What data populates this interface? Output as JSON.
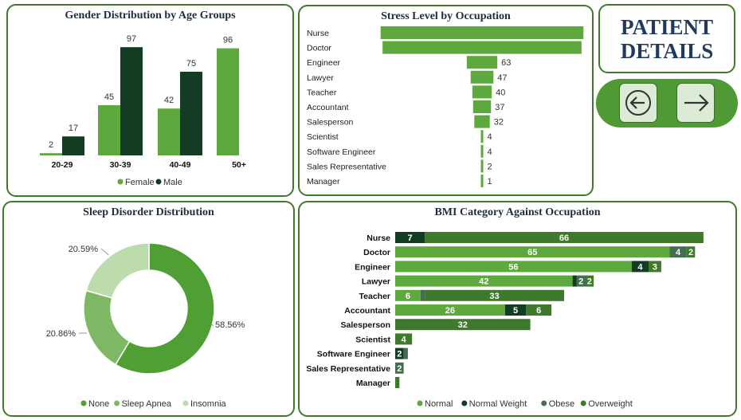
{
  "patient": {
    "line1": "PATIENT",
    "line2": "DETAILS"
  },
  "nav": {
    "prev_icon": "arrow-left-circle-icon",
    "next_icon": "arrow-right-icon"
  },
  "colors": {
    "female": "#5ea93d",
    "male": "#123d23",
    "none": "#4f9f35",
    "sleep_apnea": "#7fb865",
    "insomnia": "#bcdcad",
    "normal": "#5ea93d",
    "normal_weight": "#123d23",
    "obese": "#456e50",
    "overweight": "#3f7a2c"
  },
  "chart_data": [
    {
      "type": "bar",
      "title": "Gender Distribution by Age Groups",
      "categories": [
        "20-29",
        "30-39",
        "40-49",
        "50+"
      ],
      "series": [
        {
          "name": "Female",
          "values": [
            2,
            45,
            42,
            96
          ]
        },
        {
          "name": "Male",
          "values": [
            17,
            97,
            75,
            null
          ]
        }
      ],
      "legend": "bottom",
      "ylim": [
        0,
        100
      ]
    },
    {
      "type": "bar",
      "title": "Stress Level by Occupation",
      "orientation": "horizontal",
      "categories": [
        "Nurse",
        "Doctor",
        "Engineer",
        "Lawyer",
        "Teacher",
        "Accountant",
        "Salesperson",
        "Scientist",
        "Software Engineer",
        "Sales Representative",
        "Manager"
      ],
      "values": [
        419,
        411,
        63,
        47,
        40,
        37,
        32,
        4,
        4,
        2,
        1
      ],
      "value_labels": [
        "",
        "",
        "63",
        "47",
        "40",
        "37",
        "32",
        "4",
        "4",
        "2",
        "1"
      ],
      "xlim": [
        0,
        418
      ]
    },
    {
      "type": "pie",
      "title": "Sleep Disorder Distribution",
      "labels": [
        "None",
        "Sleep Apnea",
        "Insomnia"
      ],
      "values": [
        58.56,
        20.86,
        20.59
      ],
      "value_labels": [
        "58.56%",
        "20.86%",
        "20.59%"
      ],
      "legend": "bottom"
    },
    {
      "type": "bar",
      "title": "BMI Category Against Occupation",
      "orientation": "horizontal",
      "stacked": true,
      "categories": [
        "Nurse",
        "Doctor",
        "Engineer",
        "Lawyer",
        "Teacher",
        "Accountant",
        "Salesperson",
        "Scientist",
        "Software Engineer",
        "Sales Representative",
        "Manager"
      ],
      "series": [
        {
          "name": "Normal",
          "values": [
            0,
            65,
            56,
            42,
            6,
            26,
            0,
            0,
            0,
            0,
            0
          ]
        },
        {
          "name": "Normal Weight",
          "values": [
            7,
            0,
            4,
            1,
            0,
            5,
            0,
            0,
            2,
            0,
            0
          ]
        },
        {
          "name": "Obese",
          "values": [
            0,
            4,
            0,
            2,
            1,
            0,
            0,
            0,
            1,
            2,
            0
          ]
        },
        {
          "name": "Overweight",
          "values": [
            66,
            2,
            3,
            2,
            33,
            6,
            32,
            4,
            0,
            0,
            1
          ]
        }
      ],
      "legend": "bottom",
      "xlim": [
        0,
        73
      ]
    }
  ]
}
